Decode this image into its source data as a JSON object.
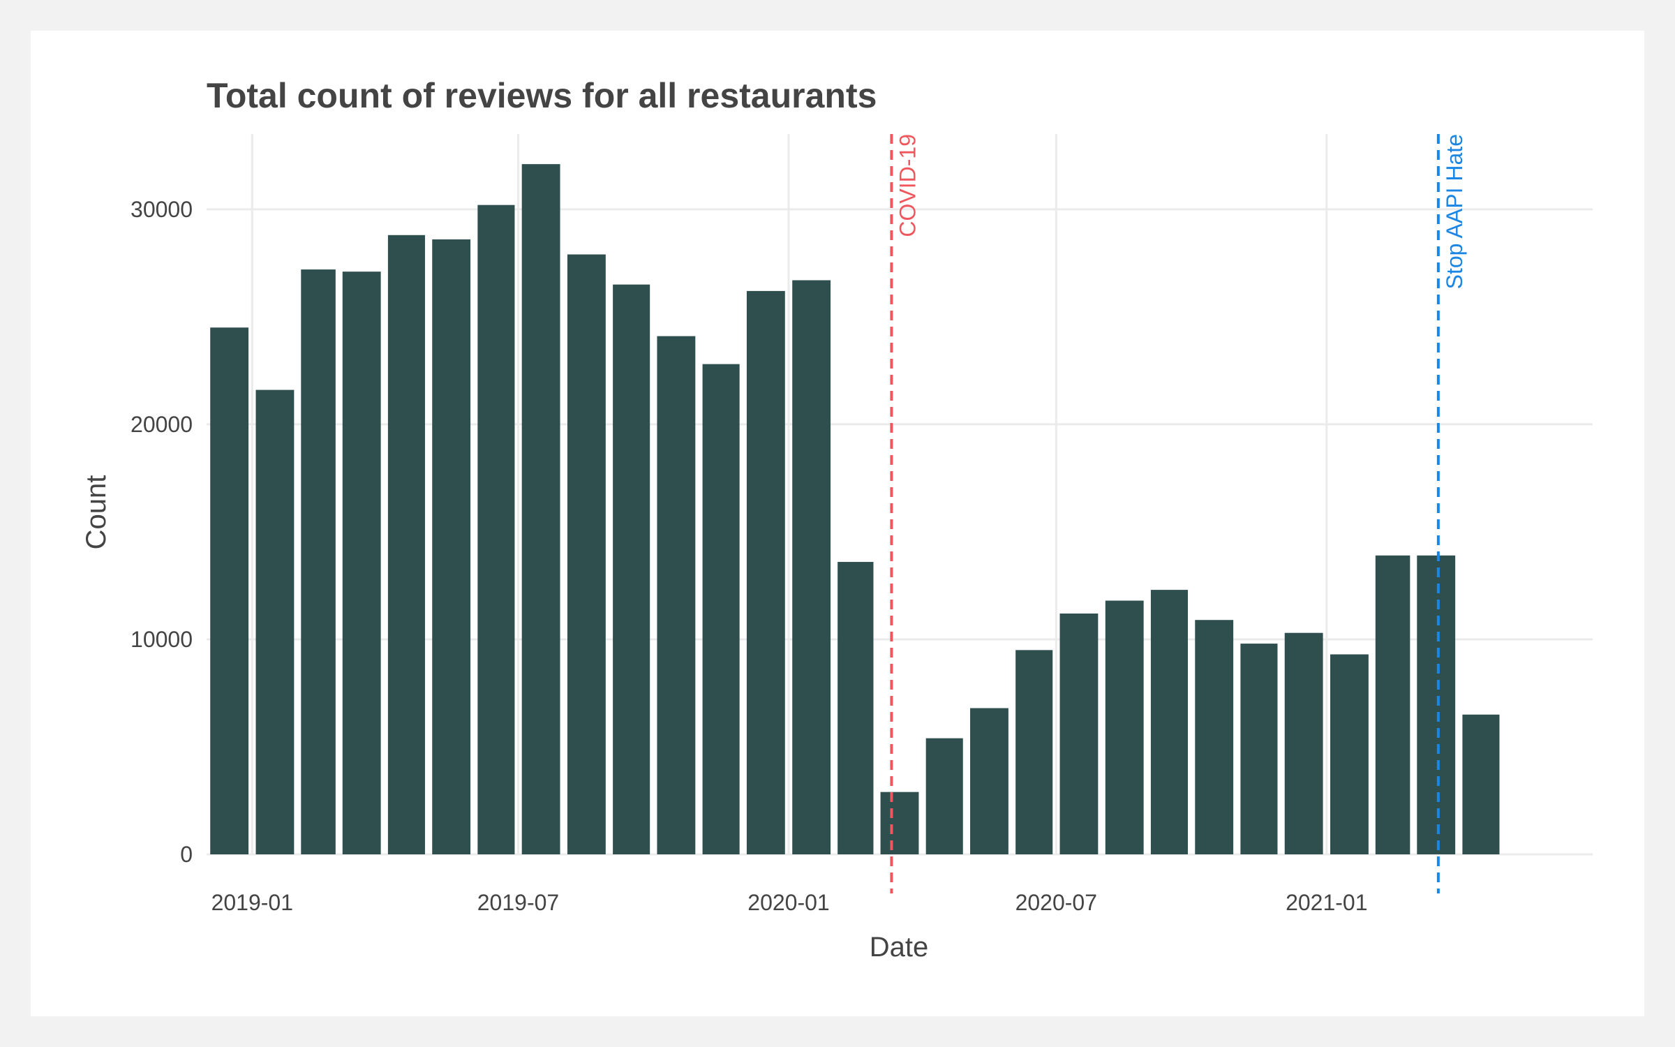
{
  "chart_data": {
    "type": "bar",
    "title": "Total count of reviews for all restaurants",
    "xlabel": "Date",
    "ylabel": "Count",
    "x_tick_labels": [
      "2019-01",
      "2019-07",
      "2020-01",
      "2020-07",
      "2021-01"
    ],
    "y_tick_labels": [
      "0",
      "10000",
      "20000",
      "30000"
    ],
    "ylim": [
      0,
      33500
    ],
    "xlim": [
      "2018-12-01",
      "2021-07-01"
    ],
    "grid": true,
    "bar_color": "#2f4f4f",
    "categories": [
      "2018-12",
      "2019-01",
      "2019-02",
      "2019-03",
      "2019-04",
      "2019-05",
      "2019-06",
      "2019-07",
      "2019-08",
      "2019-09",
      "2019-10",
      "2019-11",
      "2019-12",
      "2020-01",
      "2020-02",
      "2020-03",
      "2020-04",
      "2020-05",
      "2020-06",
      "2020-07",
      "2020-08",
      "2020-09",
      "2020-10",
      "2020-11",
      "2020-12",
      "2021-01",
      "2021-02",
      "2021-03",
      "2021-04"
    ],
    "values": [
      24500,
      21600,
      27200,
      27100,
      28800,
      28600,
      30200,
      32100,
      27900,
      26500,
      24100,
      22800,
      26200,
      26700,
      13600,
      2900,
      5400,
      6800,
      9500,
      11200,
      11800,
      12300,
      10900,
      9800,
      10300,
      9300,
      13900,
      13900,
      6500
    ],
    "annotations": [
      {
        "label": "COVID-19",
        "date": "2020-03-11",
        "color": "#f0575d"
      },
      {
        "label": "Stop AAPI Hate",
        "date": "2021-03-18",
        "color": "#1c86e3"
      }
    ]
  }
}
